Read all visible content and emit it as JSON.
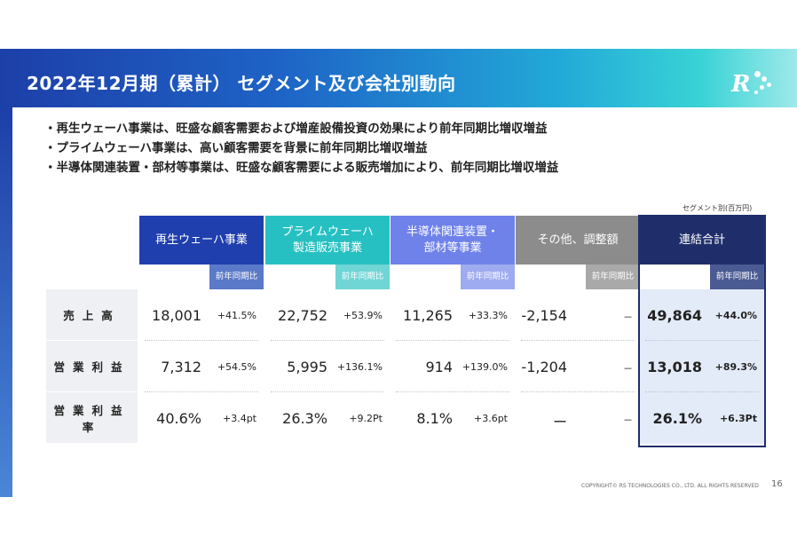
{
  "title": "2022年12月期（累計） セグメント及び会社別動向",
  "bullets": [
    "・再生ウェーハ事業は、旺盛な顧客需要および増産設備投資の効果により前年同期比増収増益",
    "・プライムウェーハ事業は、高い顧客需要を背景に前年同期比増収増益",
    "・半導体関連装置・部材等事業は、旺盛な顧客需要による販売増加により、前年同期比増収増益"
  ],
  "unit_note": "セグメント別(百万円)",
  "yoy_label": "前年同期比",
  "columns": [
    {
      "label": "再生ウェーハ事業",
      "color": "#1f3fae",
      "sub_color": "#5a79c8"
    },
    {
      "label": "プライムウェーハ\n製造販売事業",
      "color": "#27c0c2",
      "sub_color": "#6fd5d5"
    },
    {
      "label": "半導体関連装置・\n部材等事業",
      "color": "#6f82ea",
      "sub_color": "#9eabf0"
    },
    {
      "label": "その他、調整額",
      "color": "#8c8c8c",
      "sub_color": "#a9a9a9"
    },
    {
      "label": "連結合計",
      "color": "#1f2e6b",
      "sub_color": "#4a5a93"
    }
  ],
  "rows": [
    {
      "label": "売上高",
      "cells": [
        {
          "value": "18,001",
          "yoy": "+41.5%"
        },
        {
          "value": "22,752",
          "yoy": "+53.9%"
        },
        {
          "value": "11,265",
          "yoy": "+33.3%"
        },
        {
          "value": "-2,154",
          "yoy": "－"
        },
        {
          "value": "49,864",
          "yoy": "+44.0%"
        }
      ]
    },
    {
      "label": "営業利益",
      "cells": [
        {
          "value": "7,312",
          "yoy": "+54.5%"
        },
        {
          "value": "5,995",
          "yoy": "+136.1%"
        },
        {
          "value": "914",
          "yoy": "+139.0%"
        },
        {
          "value": "-1,204",
          "yoy": "－"
        },
        {
          "value": "13,018",
          "yoy": "+89.3%"
        }
      ]
    },
    {
      "label": "営業利益率",
      "cells": [
        {
          "value": "40.6%",
          "yoy": "+3.4pt"
        },
        {
          "value": "26.3%",
          "yoy": "+9.2Pt"
        },
        {
          "value": "8.1%",
          "yoy": "+3.6pt"
        },
        {
          "value": "ー",
          "yoy": "－"
        },
        {
          "value": "26.1%",
          "yoy": "+6.3Pt"
        }
      ]
    }
  ],
  "footer": "COPYRIGHT© RS TECHNOLOGIES CO., LTD. ALL RIGHTS RESERVED",
  "page_number": "16",
  "logo_text": "R"
}
